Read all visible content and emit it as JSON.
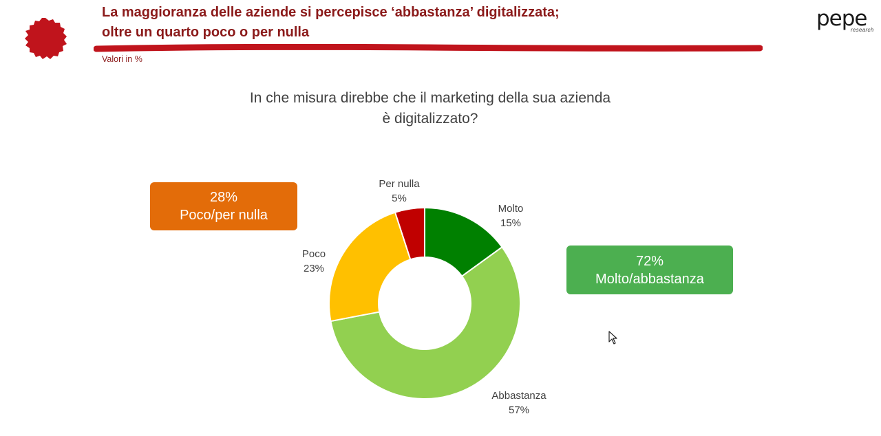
{
  "header": {
    "title_line1": "La maggioranza delle aziende si percepisce ‘abbastanza’ digitalizzata;",
    "title_line2": "oltre un quarto poco o per nulla",
    "note": "Valori in %",
    "brand_color": "#8b1a1a",
    "logo_word": "pepe",
    "logo_sub": "research"
  },
  "question": {
    "line1": "In che misura direbbe che il marketing della sua azienda",
    "line2": "è digitalizzato?"
  },
  "callouts": {
    "left": {
      "value": "28%",
      "label": "Poco/per nulla",
      "color": "#e36c09"
    },
    "right": {
      "value": "72%",
      "label": "Molto/abbastanza",
      "color": "#4caf50"
    }
  },
  "chart_data": {
    "type": "pie",
    "title": "",
    "categories": [
      "Molto",
      "Abbastanza",
      "Poco",
      "Per nulla"
    ],
    "values": [
      15,
      57,
      23,
      5
    ],
    "value_labels": [
      "15%",
      "57%",
      "23%",
      "5%"
    ],
    "colors": [
      "#008000",
      "#92d050",
      "#ffc000",
      "#c00000"
    ],
    "donut": true,
    "legend": "none"
  }
}
